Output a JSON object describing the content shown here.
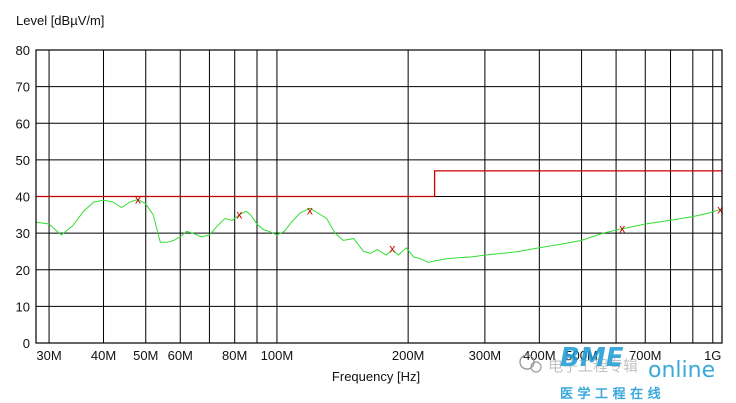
{
  "chart_data": {
    "type": "line",
    "ylabel": "Level [dBµV/m]",
    "xlabel": "Frequency [Hz]",
    "x_scale": "log",
    "xlim_hz": [
      28000000,
      1050000000
    ],
    "ylim": [
      0,
      80
    ],
    "grid": true,
    "y_ticks": [
      {
        "value": 0,
        "label": "0"
      },
      {
        "value": 10,
        "label": "10"
      },
      {
        "value": 20,
        "label": "20"
      },
      {
        "value": 30,
        "label": "30"
      },
      {
        "value": 40,
        "label": "40"
      },
      {
        "value": 50,
        "label": "50"
      },
      {
        "value": 60,
        "label": "60"
      },
      {
        "value": 70,
        "label": "70"
      },
      {
        "value": 80,
        "label": "80"
      }
    ],
    "x_ticks": [
      {
        "value": 30000000,
        "label": "30M"
      },
      {
        "value": 40000000,
        "label": "40M"
      },
      {
        "value": 50000000,
        "label": "50M"
      },
      {
        "value": 60000000,
        "label": "60M"
      },
      {
        "value": 80000000,
        "label": "80M"
      },
      {
        "value": 100000000,
        "label": "100M"
      },
      {
        "value": 200000000,
        "label": "200M"
      },
      {
        "value": 300000000,
        "label": "300M"
      },
      {
        "value": 400000000,
        "label": "400M"
      },
      {
        "value": 500000000,
        "label": "500M"
      },
      {
        "value": 700000000,
        "label": "700M"
      },
      {
        "value": 1000000000,
        "label": "1G"
      }
    ],
    "x_minor_grid": [
      70000000,
      90000000,
      600000000,
      800000000,
      900000000
    ],
    "limit_line": {
      "color": "#cc0000",
      "points": [
        [
          28000000,
          40
        ],
        [
          230000000,
          40
        ],
        [
          230000000,
          47
        ],
        [
          1050000000,
          47
        ]
      ]
    },
    "trace": {
      "color": "#33dd33",
      "points": [
        [
          28000000,
          33
        ],
        [
          30000000,
          32.5
        ],
        [
          32000000,
          29.5
        ],
        [
          34000000,
          32
        ],
        [
          36000000,
          36
        ],
        [
          38000000,
          38.5
        ],
        [
          40000000,
          39
        ],
        [
          42000000,
          38.5
        ],
        [
          44000000,
          37
        ],
        [
          46000000,
          38.5
        ],
        [
          48000000,
          39.2
        ],
        [
          50000000,
          38
        ],
        [
          52000000,
          35
        ],
        [
          54000000,
          27.5
        ],
        [
          56000000,
          27.5
        ],
        [
          58000000,
          28
        ],
        [
          60000000,
          29
        ],
        [
          62000000,
          30.5
        ],
        [
          64000000,
          30
        ],
        [
          67000000,
          29
        ],
        [
          70000000,
          29.5
        ],
        [
          73000000,
          32
        ],
        [
          76000000,
          34
        ],
        [
          79000000,
          33.5
        ],
        [
          82000000,
          35
        ],
        [
          85000000,
          36
        ],
        [
          87000000,
          35
        ],
        [
          90000000,
          32.5
        ],
        [
          93000000,
          31
        ],
        [
          96000000,
          30.5
        ],
        [
          100000000,
          29.5
        ],
        [
          104000000,
          30.5
        ],
        [
          108000000,
          33
        ],
        [
          113000000,
          35.5
        ],
        [
          119000000,
          36.8
        ],
        [
          124000000,
          35.5
        ],
        [
          130000000,
          34
        ],
        [
          136000000,
          30
        ],
        [
          142000000,
          28
        ],
        [
          150000000,
          28.5
        ],
        [
          158000000,
          25
        ],
        [
          164000000,
          24.5
        ],
        [
          170000000,
          25.5
        ],
        [
          178000000,
          24
        ],
        [
          184000000,
          25.5
        ],
        [
          190000000,
          24
        ],
        [
          198000000,
          26
        ],
        [
          206000000,
          23.5
        ],
        [
          214000000,
          23
        ],
        [
          222000000,
          22
        ],
        [
          232000000,
          22.5
        ],
        [
          245000000,
          23
        ],
        [
          260000000,
          23.3
        ],
        [
          280000000,
          23.5
        ],
        [
          300000000,
          24
        ],
        [
          330000000,
          24.5
        ],
        [
          360000000,
          25
        ],
        [
          400000000,
          26
        ],
        [
          450000000,
          27
        ],
        [
          500000000,
          28
        ],
        [
          560000000,
          30
        ],
        [
          620000000,
          31.2
        ],
        [
          700000000,
          32.5
        ],
        [
          800000000,
          33.5
        ],
        [
          900000000,
          34.5
        ],
        [
          980000000,
          35.5
        ],
        [
          1040000000,
          36.5
        ]
      ]
    },
    "markers": [
      {
        "x": 48000000,
        "y": 39.2,
        "label": "x"
      },
      {
        "x": 82000000,
        "y": 35.1,
        "label": "x"
      },
      {
        "x": 119000000,
        "y": 36.2,
        "label": "x"
      },
      {
        "x": 184000000,
        "y": 25.8,
        "label": "x"
      },
      {
        "x": 620000000,
        "y": 31.2,
        "label": "x"
      },
      {
        "x": 1040000000,
        "y": 36.5,
        "label": "x"
      }
    ],
    "marker_color": "#cc0000"
  },
  "watermark": {
    "brand": "BME",
    "suffix": "online",
    "cn_top": "电子工程专辑",
    "cn_bottom": "医 学 工 程 在 线",
    "color": "#1a9ad6"
  }
}
